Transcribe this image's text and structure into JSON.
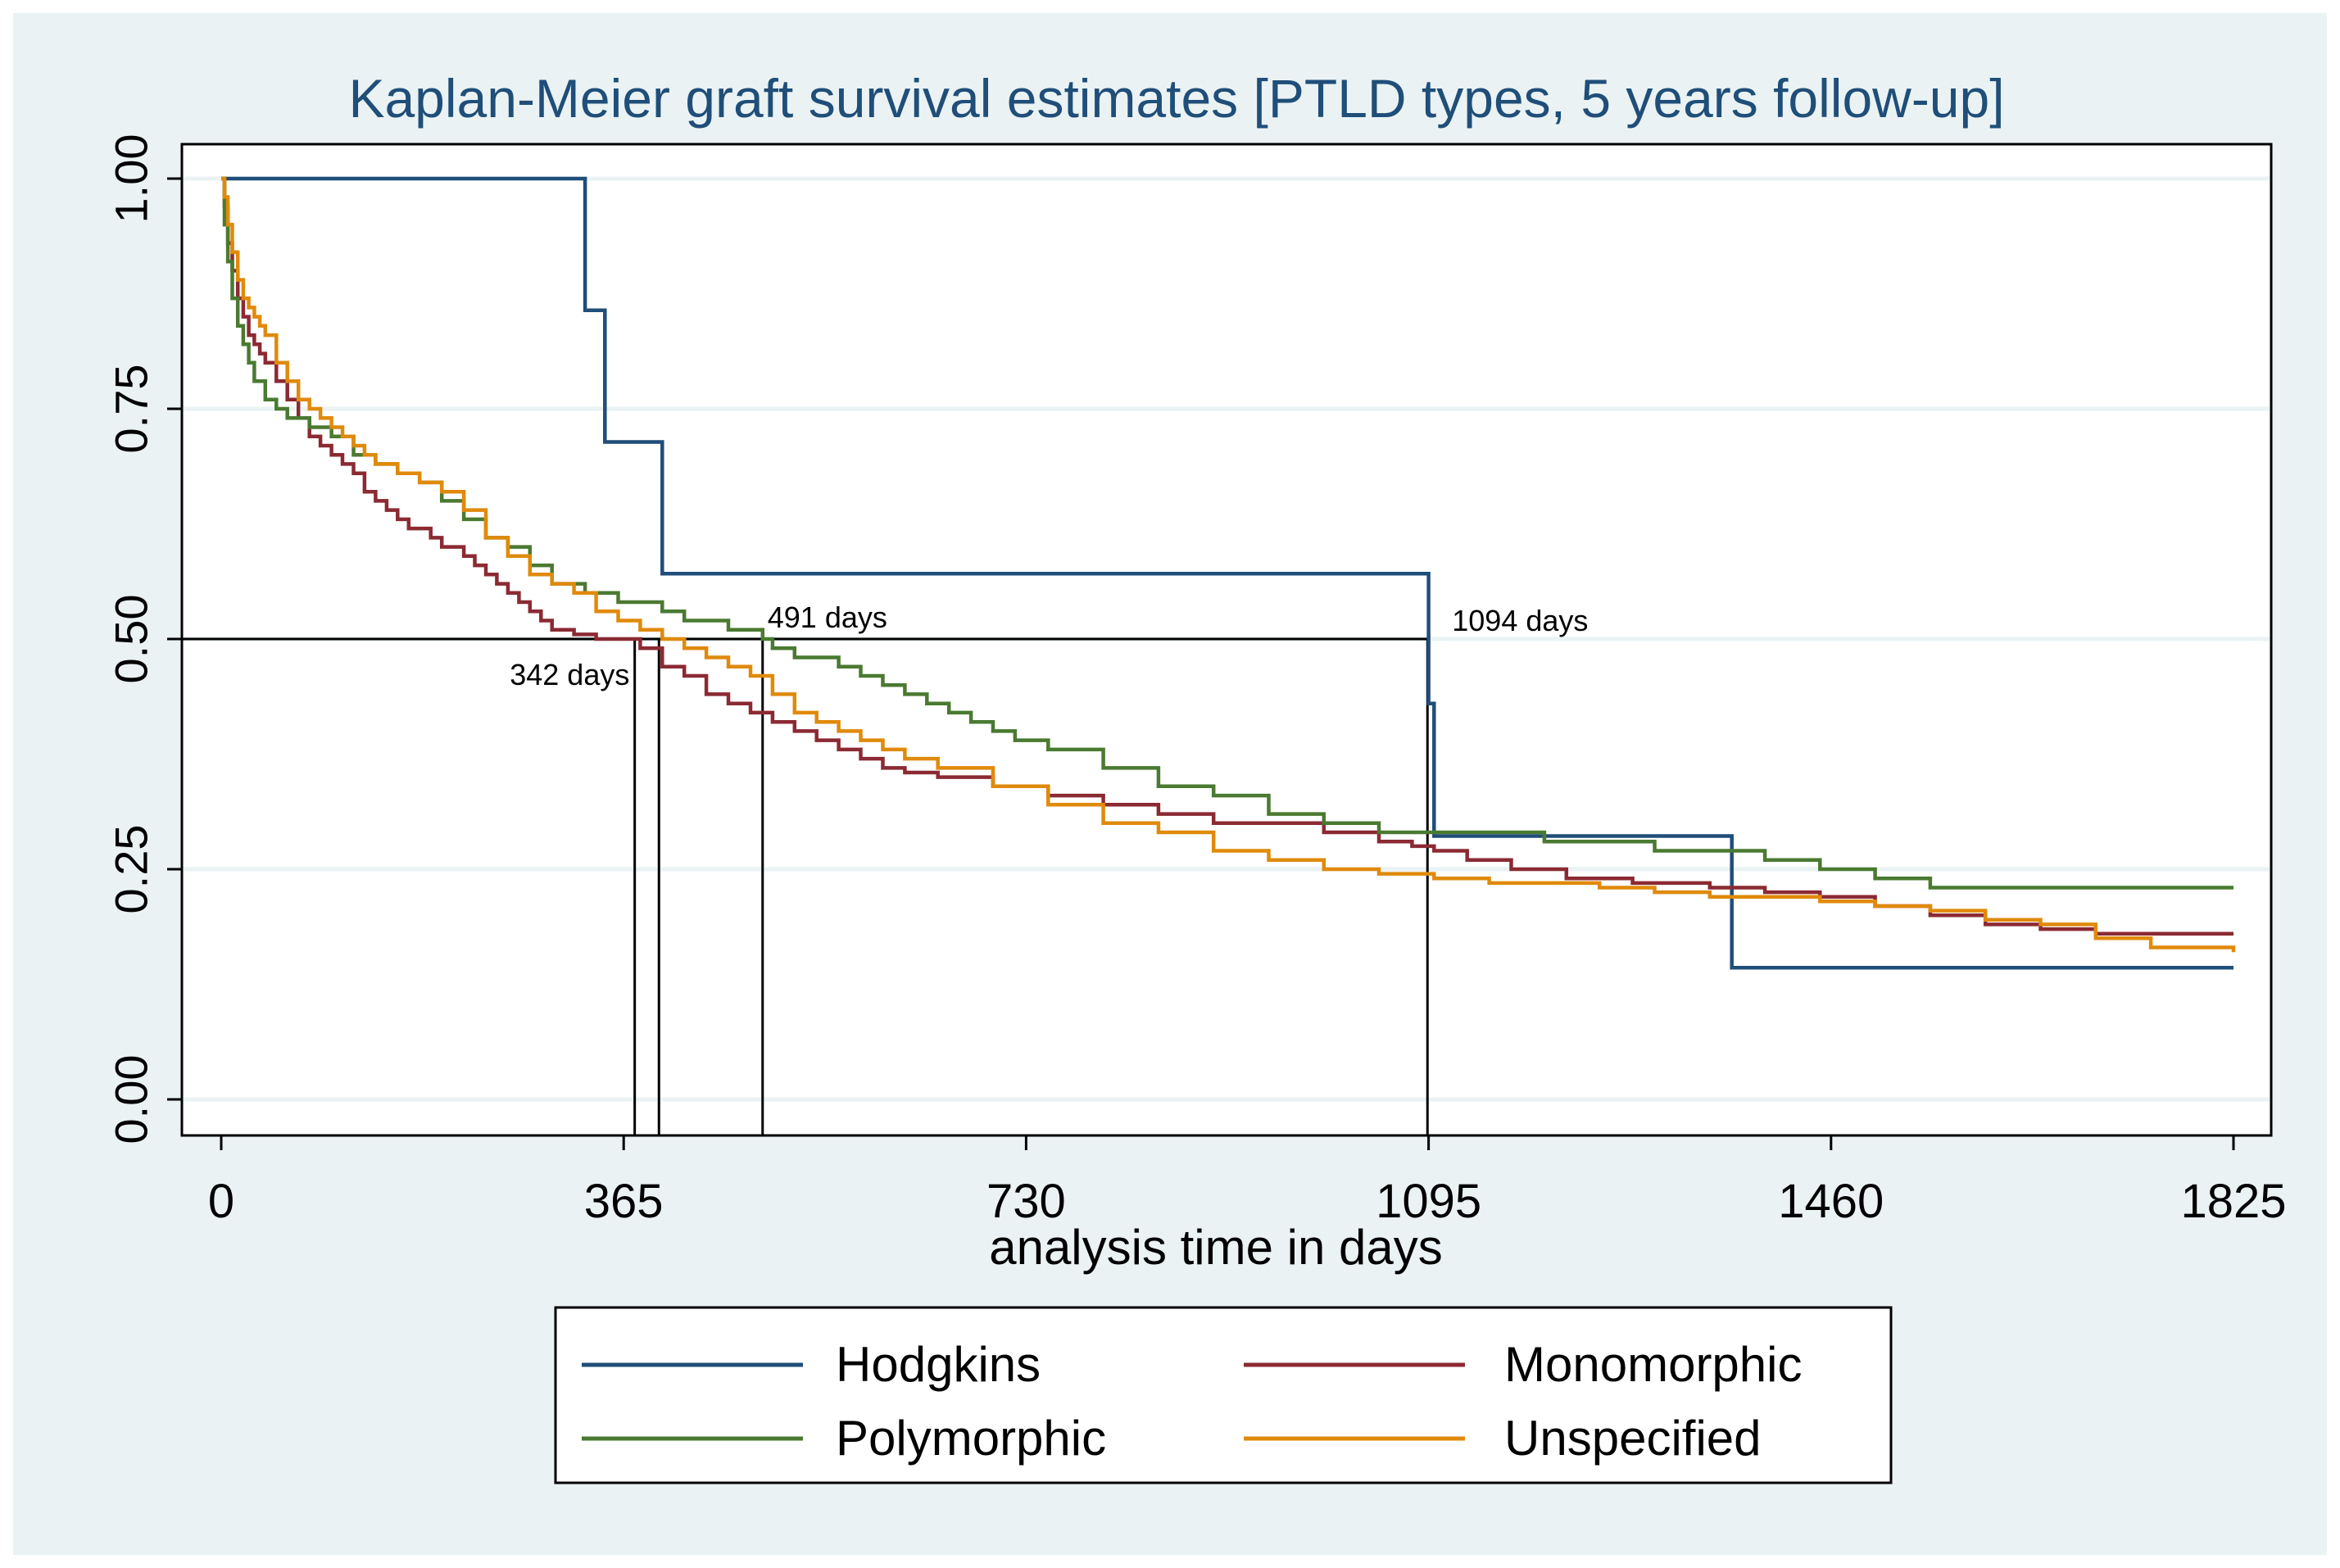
{
  "chart_data": {
    "type": "line",
    "step": true,
    "title": "Kaplan-Meier graft survival estimates [PTLD types, 5 years follow-up]",
    "xlabel": "analysis time in days",
    "ylabel": "",
    "xlim": [
      0,
      1825
    ],
    "ylim": [
      0,
      1
    ],
    "xticks": [
      "0",
      "365",
      "730",
      "1095",
      "1460",
      "1825"
    ],
    "xtick_values": [
      0,
      365,
      730,
      1095,
      1460,
      1825
    ],
    "yticks": [
      "0.00",
      "0.25",
      "0.50",
      "0.75",
      "1.00"
    ],
    "ytick_values": [
      0,
      0.25,
      0.5,
      0.75,
      1.0
    ],
    "grid": true,
    "legend_position": "bottom",
    "median_line": {
      "y": 0.5,
      "x_drops": [
        375,
        397,
        491,
        1094
      ]
    },
    "annotations": [
      {
        "text": "342 days",
        "x": 342,
        "y": 0.5
      },
      {
        "text": "491 days",
        "x": 491,
        "y": 0.5
      },
      {
        "text": "1094 days",
        "x": 1094,
        "y": 0.5
      }
    ],
    "series": [
      {
        "name": "Hodgkins",
        "color": "#1f4e79",
        "x": [
          0,
          330,
          330,
          348,
          348,
          400,
          400,
          1095,
          1095,
          1100,
          1100,
          1370,
          1370,
          1825
        ],
        "y": [
          1.0,
          1.0,
          0.857,
          0.857,
          0.714,
          0.714,
          0.571,
          0.571,
          0.43,
          0.43,
          0.286,
          0.286,
          0.143,
          0.143
        ]
      },
      {
        "name": "Monomorphic",
        "color": "#8b2a33",
        "x": [
          0,
          3,
          6,
          10,
          15,
          20,
          25,
          30,
          35,
          40,
          50,
          60,
          70,
          80,
          90,
          100,
          110,
          120,
          130,
          140,
          150,
          160,
          170,
          180,
          190,
          200,
          210,
          220,
          230,
          240,
          250,
          260,
          270,
          280,
          290,
          300,
          320,
          340,
          360,
          380,
          400,
          420,
          440,
          460,
          480,
          500,
          520,
          540,
          560,
          580,
          600,
          620,
          650,
          700,
          750,
          800,
          850,
          900,
          950,
          1000,
          1050,
          1080,
          1100,
          1130,
          1170,
          1220,
          1280,
          1350,
          1400,
          1450,
          1500,
          1550,
          1600,
          1650,
          1700,
          1825
        ],
        "y": [
          1.0,
          0.97,
          0.93,
          0.9,
          0.87,
          0.85,
          0.83,
          0.82,
          0.81,
          0.8,
          0.78,
          0.76,
          0.74,
          0.72,
          0.71,
          0.7,
          0.69,
          0.68,
          0.66,
          0.65,
          0.64,
          0.63,
          0.62,
          0.62,
          0.61,
          0.6,
          0.6,
          0.59,
          0.58,
          0.57,
          0.56,
          0.55,
          0.54,
          0.53,
          0.52,
          0.51,
          0.505,
          0.5,
          0.5,
          0.49,
          0.47,
          0.46,
          0.44,
          0.43,
          0.42,
          0.41,
          0.4,
          0.39,
          0.38,
          0.37,
          0.36,
          0.355,
          0.35,
          0.34,
          0.33,
          0.32,
          0.31,
          0.3,
          0.3,
          0.29,
          0.28,
          0.275,
          0.27,
          0.26,
          0.25,
          0.24,
          0.235,
          0.23,
          0.225,
          0.22,
          0.21,
          0.2,
          0.19,
          0.185,
          0.18,
          0.18
        ]
      },
      {
        "name": "Polymorphic",
        "color": "#4a7a31",
        "x": [
          0,
          3,
          6,
          10,
          15,
          20,
          25,
          30,
          40,
          50,
          60,
          80,
          100,
          120,
          140,
          160,
          180,
          200,
          220,
          240,
          260,
          280,
          300,
          330,
          360,
          380,
          400,
          420,
          440,
          460,
          480,
          491,
          500,
          520,
          540,
          560,
          580,
          600,
          620,
          640,
          660,
          680,
          700,
          720,
          750,
          800,
          850,
          900,
          950,
          1000,
          1050,
          1100,
          1150,
          1200,
          1250,
          1300,
          1350,
          1400,
          1450,
          1500,
          1550,
          1600,
          1825
        ],
        "y": [
          1.0,
          0.95,
          0.91,
          0.87,
          0.84,
          0.82,
          0.8,
          0.78,
          0.76,
          0.75,
          0.74,
          0.73,
          0.72,
          0.7,
          0.69,
          0.68,
          0.67,
          0.65,
          0.63,
          0.61,
          0.6,
          0.58,
          0.56,
          0.55,
          0.54,
          0.54,
          0.53,
          0.52,
          0.52,
          0.51,
          0.51,
          0.5,
          0.49,
          0.48,
          0.48,
          0.47,
          0.46,
          0.45,
          0.44,
          0.43,
          0.42,
          0.41,
          0.4,
          0.39,
          0.38,
          0.36,
          0.34,
          0.33,
          0.31,
          0.3,
          0.29,
          0.29,
          0.29,
          0.28,
          0.28,
          0.27,
          0.27,
          0.26,
          0.25,
          0.24,
          0.23,
          0.23,
          0.23
        ]
      },
      {
        "name": "Unspecified",
        "color": "#e08a0b",
        "x": [
          0,
          3,
          6,
          10,
          15,
          20,
          25,
          30,
          35,
          40,
          50,
          60,
          70,
          80,
          90,
          100,
          110,
          120,
          130,
          140,
          160,
          180,
          200,
          220,
          240,
          260,
          280,
          300,
          320,
          340,
          360,
          380,
          400,
          420,
          440,
          460,
          480,
          500,
          520,
          540,
          560,
          580,
          600,
          620,
          650,
          700,
          750,
          800,
          850,
          900,
          950,
          1000,
          1050,
          1100,
          1150,
          1200,
          1250,
          1300,
          1350,
          1400,
          1450,
          1500,
          1550,
          1600,
          1650,
          1700,
          1750,
          1825
        ],
        "y": [
          1.0,
          0.98,
          0.95,
          0.92,
          0.89,
          0.87,
          0.86,
          0.85,
          0.84,
          0.83,
          0.8,
          0.78,
          0.76,
          0.75,
          0.74,
          0.73,
          0.72,
          0.71,
          0.7,
          0.69,
          0.68,
          0.67,
          0.66,
          0.64,
          0.61,
          0.59,
          0.57,
          0.56,
          0.55,
          0.53,
          0.52,
          0.51,
          0.5,
          0.49,
          0.48,
          0.47,
          0.46,
          0.44,
          0.42,
          0.41,
          0.4,
          0.39,
          0.38,
          0.37,
          0.36,
          0.34,
          0.32,
          0.3,
          0.29,
          0.27,
          0.26,
          0.25,
          0.245,
          0.24,
          0.235,
          0.235,
          0.23,
          0.225,
          0.22,
          0.22,
          0.215,
          0.21,
          0.205,
          0.195,
          0.19,
          0.175,
          0.165,
          0.16
        ]
      }
    ]
  }
}
